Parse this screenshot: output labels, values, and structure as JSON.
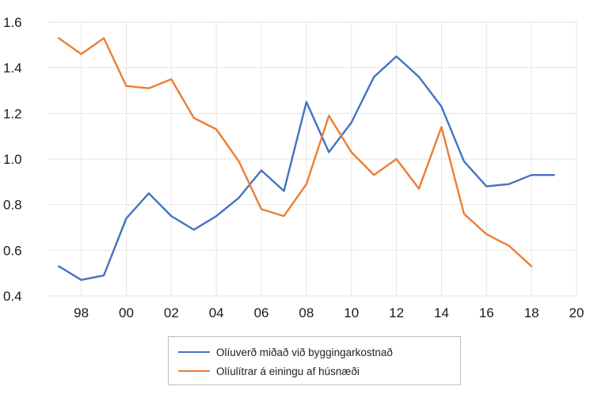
{
  "chart_data": {
    "type": "line",
    "title": "",
    "xlabel": "",
    "ylabel": "",
    "x": [
      1997,
      1998,
      1999,
      2000,
      2001,
      2002,
      2003,
      2004,
      2005,
      2006,
      2007,
      2008,
      2009,
      2010,
      2011,
      2012,
      2013,
      2014,
      2015,
      2016,
      2017,
      2018,
      2019
    ],
    "xlim": [
      1996.5,
      2020
    ],
    "ylim": [
      0.4,
      1.6
    ],
    "x_ticks": [
      1998,
      2000,
      2002,
      2004,
      2006,
      2008,
      2010,
      2012,
      2014,
      2016,
      2018,
      2020
    ],
    "x_tick_labels": [
      "98",
      "00",
      "02",
      "04",
      "06",
      "08",
      "10",
      "12",
      "14",
      "16",
      "18",
      "20"
    ],
    "y_ticks": [
      0.4,
      0.6,
      0.8,
      1.0,
      1.2,
      1.4,
      1.6
    ],
    "y_tick_labels": [
      "0.4",
      "0.6",
      "0.8",
      "1.0",
      "1.2",
      "1.4",
      "1.6"
    ],
    "grid": true,
    "legend_position": "bottom",
    "series": [
      {
        "name": "Olíuverð miðað við byggingarkostnað",
        "color": "#4472c4",
        "values": [
          0.53,
          0.47,
          0.49,
          0.74,
          0.85,
          0.75,
          0.69,
          0.75,
          0.83,
          0.95,
          0.86,
          1.25,
          1.03,
          1.16,
          1.36,
          1.45,
          1.36,
          1.23,
          0.99,
          0.88,
          0.89,
          0.93,
          0.93
        ]
      },
      {
        "name": "Olíulítrar á einingu af húsnæði",
        "color": "#ed7d31",
        "values": [
          1.53,
          1.46,
          1.53,
          1.32,
          1.31,
          1.35,
          1.18,
          1.13,
          0.99,
          0.78,
          0.75,
          0.89,
          1.19,
          1.03,
          0.93,
          1.0,
          0.87,
          1.14,
          0.76,
          0.67,
          0.62,
          0.53,
          null
        ]
      }
    ]
  }
}
